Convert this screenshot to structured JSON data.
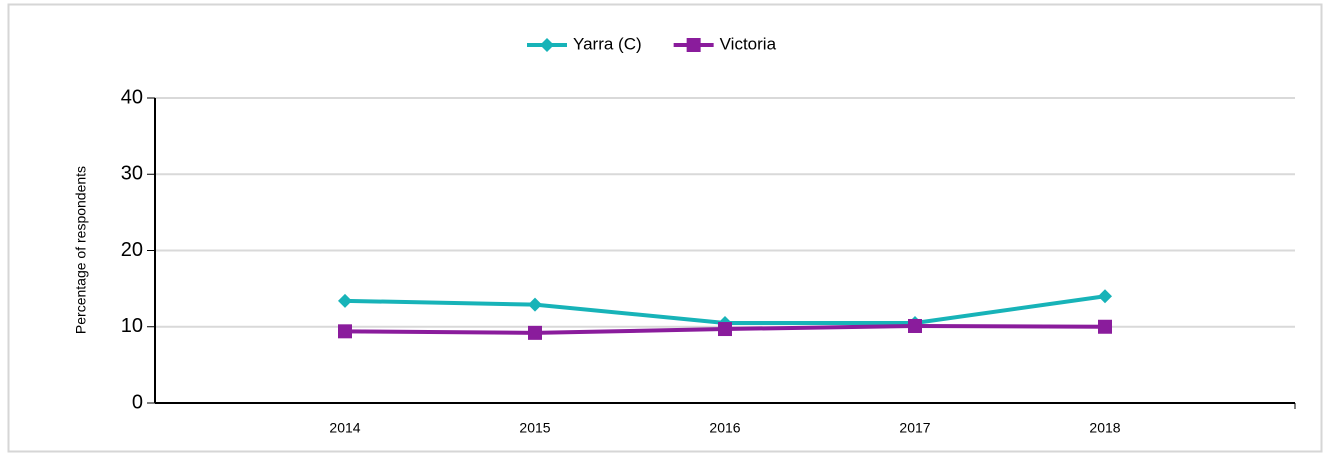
{
  "chart_data": {
    "type": "line",
    "categories": [
      "2014",
      "2015",
      "2016",
      "2017",
      "2018"
    ],
    "series": [
      {
        "name": "Yarra (C)",
        "color": "#17b3b8",
        "marker": "diamond",
        "values": [
          13.4,
          12.9,
          10.5,
          10.5,
          14.0
        ]
      },
      {
        "name": "Victoria",
        "color": "#8a1c9c",
        "marker": "square",
        "values": [
          9.4,
          9.2,
          9.7,
          10.1,
          10.0
        ]
      }
    ],
    "y_label": "Percentage of respondents",
    "ylim": [
      0,
      40
    ],
    "yticks": [
      0,
      10,
      20,
      30,
      40
    ],
    "grid": true,
    "legend": "top"
  }
}
